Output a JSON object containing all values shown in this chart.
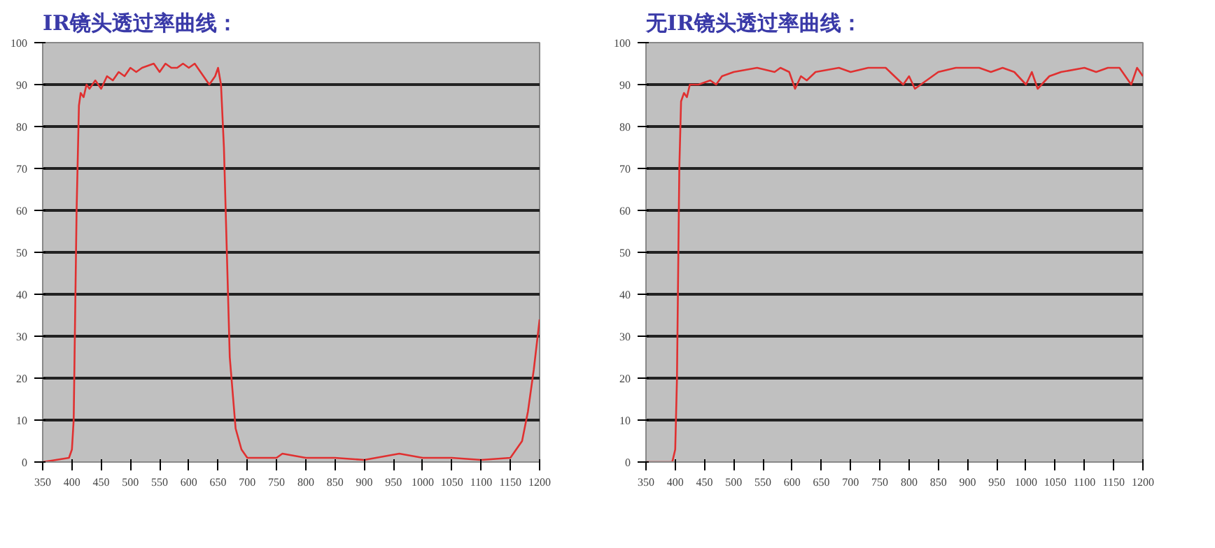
{
  "chart_data": [
    {
      "type": "line",
      "title": "IR镜头透过率曲线：",
      "xlim": [
        350,
        1200
      ],
      "xticks": [
        350,
        400,
        450,
        500,
        550,
        600,
        650,
        700,
        750,
        800,
        850,
        900,
        950,
        1000,
        1050,
        1100,
        1150,
        1200
      ],
      "ylim": [
        0,
        100
      ],
      "yticks": [
        0,
        10,
        20,
        30,
        40,
        50,
        60,
        70,
        80,
        90,
        100
      ],
      "grid": "y",
      "marker": "none",
      "line_style": "solid",
      "series": [
        {
          "color": "#e03030",
          "x": [
            350,
            395,
            400,
            403,
            408,
            412,
            415,
            420,
            425,
            430,
            440,
            450,
            460,
            470,
            480,
            490,
            500,
            510,
            520,
            540,
            550,
            560,
            570,
            580,
            590,
            600,
            610,
            620,
            630,
            635,
            645,
            650,
            655,
            660,
            665,
            670,
            680,
            690,
            700,
            750,
            760,
            800,
            850,
            900,
            960,
            1000,
            1050,
            1100,
            1150,
            1170,
            1180,
            1190,
            1200
          ],
          "values": [
            0,
            1,
            3,
            10,
            60,
            85,
            88,
            87,
            90,
            89,
            91,
            89,
            92,
            91,
            93,
            92,
            94,
            93,
            94,
            95,
            93,
            95,
            94,
            94,
            95,
            94,
            95,
            93,
            91,
            90,
            92,
            94,
            90,
            75,
            50,
            25,
            8,
            3,
            1,
            1,
            2,
            1,
            1,
            0.5,
            2,
            1,
            1,
            0.5,
            1,
            5,
            12,
            22,
            34
          ]
        }
      ]
    },
    {
      "type": "line",
      "title": "无IR镜头透过率曲线：",
      "xlim": [
        350,
        1200
      ],
      "xticks": [
        350,
        400,
        450,
        500,
        550,
        600,
        650,
        700,
        750,
        800,
        850,
        900,
        950,
        1000,
        1050,
        1100,
        1150,
        1200
      ],
      "ylim": [
        0,
        100
      ],
      "yticks": [
        0,
        10,
        20,
        30,
        40,
        50,
        60,
        70,
        80,
        90,
        100
      ],
      "grid": "y",
      "marker": "none",
      "line_style": "solid",
      "series": [
        {
          "color": "#e03030",
          "x": [
            350,
            395,
            400,
            403,
            407,
            410,
            415,
            420,
            425,
            440,
            460,
            470,
            480,
            500,
            540,
            570,
            580,
            595,
            605,
            615,
            625,
            640,
            680,
            700,
            730,
            760,
            790,
            800,
            810,
            830,
            850,
            880,
            920,
            940,
            960,
            980,
            1000,
            1010,
            1020,
            1040,
            1060,
            1100,
            1120,
            1140,
            1160,
            1180,
            1190,
            1200
          ],
          "values": [
            0,
            0,
            3,
            20,
            70,
            86,
            88,
            87,
            90,
            90,
            91,
            90,
            92,
            93,
            94,
            93,
            94,
            93,
            89,
            92,
            91,
            93,
            94,
            93,
            94,
            94,
            90,
            92,
            89,
            91,
            93,
            94,
            94,
            93,
            94,
            93,
            90,
            93,
            89,
            92,
            93,
            94,
            93,
            94,
            94,
            90,
            94,
            92
          ]
        }
      ]
    }
  ]
}
